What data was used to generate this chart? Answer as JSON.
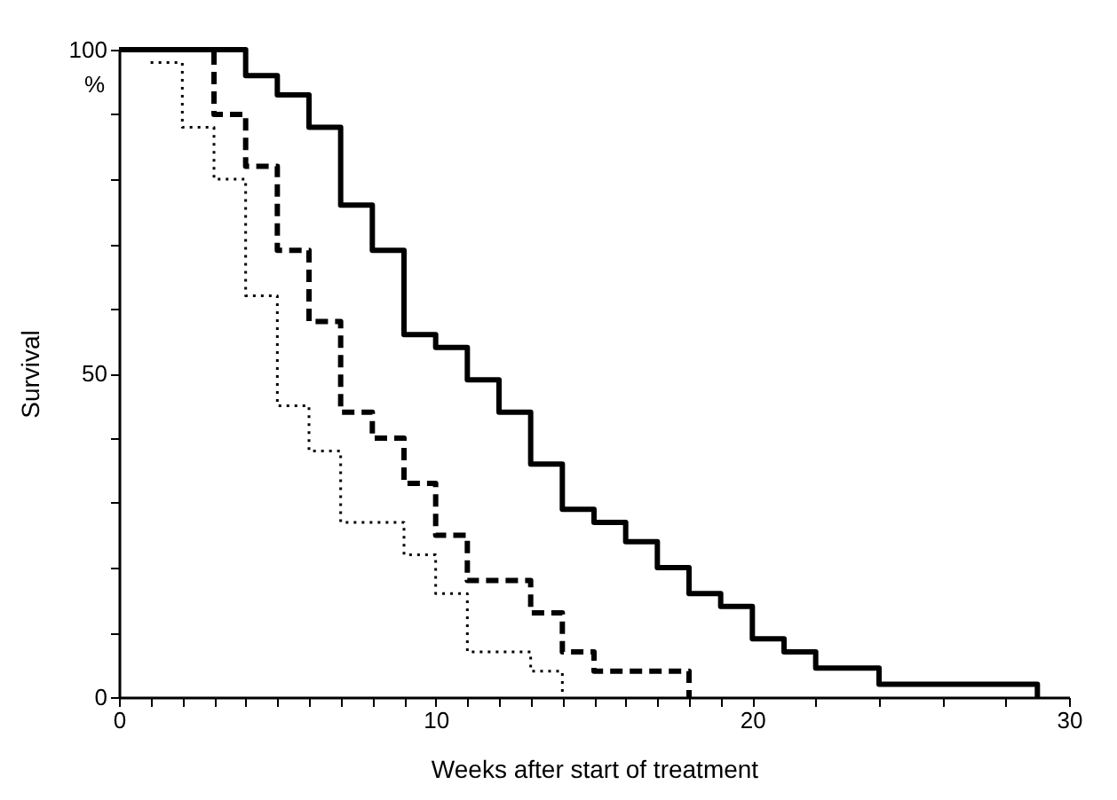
{
  "chart_data": {
    "type": "step",
    "xlabel": "Weeks after start of treatment",
    "ylabel": "Survival",
    "annotations": [
      "%"
    ],
    "xlim": [
      0,
      30
    ],
    "ylim": [
      0,
      100
    ],
    "xticks": [
      0,
      {
        "value": 1,
        "label": null
      },
      {
        "value": 2,
        "label": null
      },
      {
        "value": 3,
        "label": null
      },
      {
        "value": 4,
        "label": null
      },
      {
        "value": 5,
        "label": null
      },
      {
        "value": 6,
        "label": null
      },
      {
        "value": 7,
        "label": null
      },
      {
        "value": 8,
        "label": null
      },
      {
        "value": 9,
        "label": null
      },
      10,
      {
        "value": 11,
        "label": null
      },
      {
        "value": 12,
        "label": null
      },
      {
        "value": 13,
        "label": null
      },
      {
        "value": 14,
        "label": null
      },
      {
        "value": 15,
        "label": null
      },
      {
        "value": 16,
        "label": null
      },
      {
        "value": 17,
        "label": null
      },
      {
        "value": 18,
        "label": null
      },
      {
        "value": 19,
        "label": null
      },
      20,
      {
        "value": 22,
        "label": null
      },
      {
        "value": 24,
        "label": null
      },
      {
        "value": 26,
        "label": null
      },
      {
        "value": 28,
        "label": null
      },
      30
    ],
    "yticks": [
      0,
      {
        "value": 10,
        "label": null
      },
      {
        "value": 20,
        "label": null
      },
      {
        "value": 30,
        "label": null
      },
      {
        "value": 40,
        "label": null
      },
      50,
      {
        "value": 60,
        "label": null
      },
      {
        "value": 70,
        "label": null
      },
      {
        "value": 80,
        "label": null
      },
      {
        "value": 90,
        "label": null
      },
      100
    ],
    "grid": false,
    "series": [
      {
        "color": "#000000",
        "line_style": "solid",
        "x": [
          0,
          4,
          5,
          6,
          7,
          8,
          9,
          10,
          11,
          12,
          13,
          14,
          15,
          16,
          17,
          18,
          19,
          20,
          21,
          22,
          24,
          29
        ],
        "values": [
          100,
          96,
          93,
          88,
          76,
          69,
          56,
          54,
          49,
          44,
          36,
          29,
          27,
          24,
          20,
          16,
          14,
          9,
          7,
          4.5,
          2,
          0
        ]
      },
      {
        "color": "#000000",
        "line_style": "dashed",
        "x": [
          0,
          3,
          4,
          5,
          6,
          7,
          8,
          9,
          10,
          11,
          13,
          14,
          15,
          18
        ],
        "values": [
          100,
          90,
          82,
          69,
          58,
          44,
          40,
          33,
          25,
          18,
          13,
          7,
          4,
          0
        ]
      },
      {
        "color": "#000000",
        "line_style": "dotted",
        "x": [
          1,
          2,
          3,
          4,
          5,
          6,
          7,
          9,
          10,
          11,
          13,
          14
        ],
        "values": [
          98,
          88,
          80,
          62,
          45,
          38,
          27,
          22,
          16,
          7,
          4,
          0
        ]
      }
    ]
  }
}
